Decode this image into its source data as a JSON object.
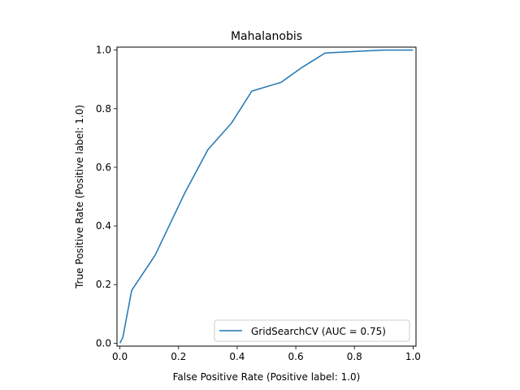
{
  "chart_data": {
    "type": "line",
    "title": "Mahalanobis",
    "xlabel": "False Positive Rate (Positive label: 1.0)",
    "ylabel": "True Positive Rate (Positive label: 1.0)",
    "xlim": [
      -0.01,
      1.01
    ],
    "ylim": [
      -0.01,
      1.01
    ],
    "xticks": [
      {
        "value": 0.0,
        "label": "0.0"
      },
      {
        "value": 0.2,
        "label": "0.2"
      },
      {
        "value": 0.4,
        "label": "0.4"
      },
      {
        "value": 0.6,
        "label": "0.6"
      },
      {
        "value": 0.8,
        "label": "0.8"
      },
      {
        "value": 1.0,
        "label": "1.0"
      }
    ],
    "yticks": [
      {
        "value": 0.0,
        "label": "0.0"
      },
      {
        "value": 0.2,
        "label": "0.2"
      },
      {
        "value": 0.4,
        "label": "0.4"
      },
      {
        "value": 0.6,
        "label": "0.6"
      },
      {
        "value": 0.8,
        "label": "0.8"
      },
      {
        "value": 1.0,
        "label": "1.0"
      }
    ],
    "grid": false,
    "legend_position": "lower right",
    "series": [
      {
        "name": "GridSearchCV (AUC = 0.75)",
        "color": "#1f77b4",
        "x": [
          0.0,
          0.01,
          0.04,
          0.12,
          0.22,
          0.3,
          0.38,
          0.45,
          0.55,
          0.62,
          0.7,
          0.8,
          0.9,
          1.0
        ],
        "y": [
          0.0,
          0.02,
          0.18,
          0.3,
          0.51,
          0.66,
          0.75,
          0.86,
          0.89,
          0.94,
          0.99,
          0.995,
          1.0,
          1.0
        ]
      }
    ]
  }
}
